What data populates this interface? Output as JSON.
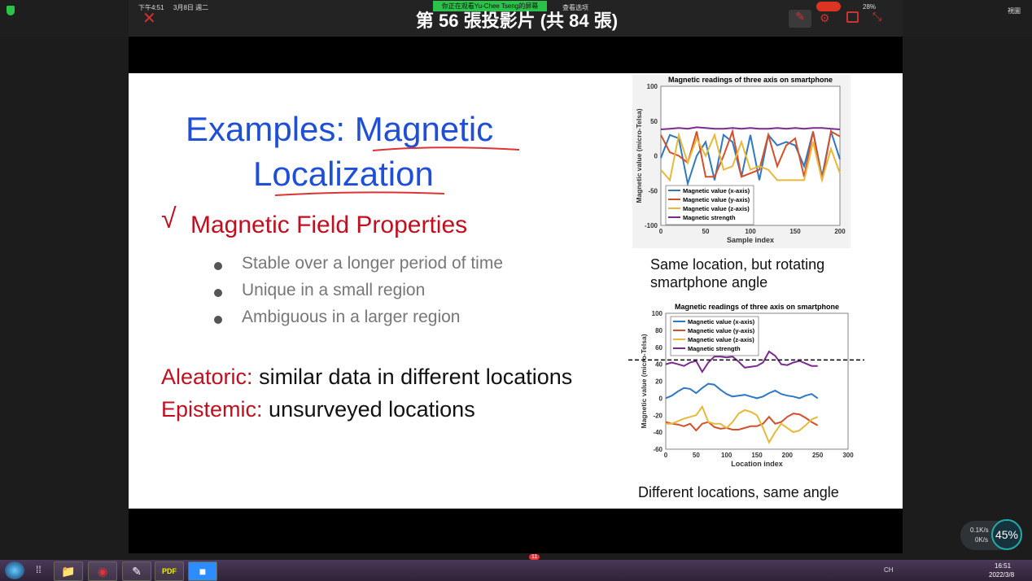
{
  "status": {
    "time": "下午4:51",
    "date": "3月8日 週二",
    "battery": "28%",
    "view": "視圖"
  },
  "meeting": {
    "share_notice": "你正在观看Yu-Chee Tseng的屏幕",
    "view_options": "查看选项",
    "slide_title": "第 56 張投影片 (共 84 張)"
  },
  "slide": {
    "title_line1a": "Examples: ",
    "title_line1b": "Magnetic",
    "title_line2": "Localization",
    "check": "√",
    "heading": "Magnetic Field Properties",
    "bullets": [
      "Stable over a longer period of time",
      "Unique in a small region",
      "Ambiguous in a larger region"
    ],
    "aleatoric_label": "Aleatoric:",
    "aleatoric_text": " similar data in different locations",
    "epistemic_label": "Epistemic:",
    "epistemic_text": " unsurveyed locations",
    "caption1": "Same location, but rotating smartphone angle",
    "caption2": "Different locations, same angle"
  },
  "chart_data": [
    {
      "type": "line",
      "title": "Magnetic readings of three axis on smartphone",
      "xlabel": "Sample index",
      "ylabel": "Magnetic value (micro-Telsa)",
      "xlim": [
        0,
        200
      ],
      "ylim": [
        -100,
        100
      ],
      "xticks": [
        0,
        50,
        100,
        150,
        200
      ],
      "yticks": [
        -100,
        -50,
        0,
        50,
        100
      ],
      "legend": "bottom-left",
      "x": [
        0,
        10,
        20,
        30,
        40,
        50,
        60,
        70,
        80,
        90,
        100,
        110,
        120,
        130,
        140,
        150,
        160,
        170,
        180,
        190,
        200
      ],
      "series": [
        {
          "name": "Magnetic value (x-axis)",
          "color": "#2f78c4",
          "values": [
            -3,
            30,
            25,
            -40,
            0,
            20,
            -35,
            30,
            20,
            -30,
            30,
            -35,
            30,
            15,
            20,
            15,
            -15,
            35,
            -30,
            35,
            -5
          ]
        },
        {
          "name": "Magnetic value (y-axis)",
          "color": "#d4502a",
          "values": [
            30,
            5,
            0,
            -10,
            35,
            -30,
            -30,
            0,
            35,
            -30,
            -25,
            -20,
            30,
            -15,
            15,
            25,
            -30,
            35,
            -35,
            35,
            28
          ]
        },
        {
          "name": "Magnetic value (z-axis)",
          "color": "#e8b83a",
          "values": [
            -20,
            -35,
            30,
            -10,
            25,
            0,
            30,
            -20,
            -15,
            20,
            -20,
            -15,
            -20,
            -35,
            -35,
            -35,
            -35,
            20,
            -35,
            10,
            -25
          ]
        },
        {
          "name": "Magnetic strength",
          "color": "#7b2a8f",
          "values": [
            38,
            39,
            40,
            39,
            41,
            40,
            39,
            39,
            40,
            39,
            40,
            39,
            39,
            40,
            39,
            40,
            39,
            40,
            40,
            39,
            38
          ]
        }
      ]
    },
    {
      "type": "line",
      "title": "Magnetic readings of three axis on smartphone",
      "xlabel": "Location index",
      "ylabel": "Magnetic value (micro-Telsa)",
      "xlim": [
        0,
        300
      ],
      "ylim": [
        -60,
        100
      ],
      "xticks": [
        0,
        50,
        100,
        150,
        200,
        250,
        300
      ],
      "yticks": [
        -60,
        -40,
        -20,
        0,
        20,
        40,
        60,
        80,
        100
      ],
      "legend": "top-left",
      "reference_line": 45,
      "x": [
        0,
        10,
        20,
        30,
        40,
        50,
        60,
        70,
        80,
        90,
        100,
        110,
        120,
        130,
        140,
        150,
        160,
        170,
        180,
        190,
        200,
        210,
        220,
        230,
        240,
        250
      ],
      "series": [
        {
          "name": "Magnetic value (x-axis)",
          "color": "#2f78c4",
          "values": [
            0,
            3,
            8,
            12,
            11,
            6,
            12,
            17,
            16,
            10,
            5,
            2,
            3,
            4,
            2,
            0,
            2,
            6,
            9,
            5,
            3,
            2,
            0,
            3,
            5,
            0
          ]
        },
        {
          "name": "Magnetic value (y-axis)",
          "color": "#d4502a",
          "values": [
            -28,
            -30,
            -31,
            -33,
            -30,
            -38,
            -30,
            -28,
            -34,
            -36,
            -35,
            -37,
            -37,
            -35,
            -33,
            -33,
            -30,
            -22,
            -30,
            -28,
            -22,
            -18,
            -19,
            -23,
            -28,
            -32
          ]
        },
        {
          "name": "Magnetic value (z-axis)",
          "color": "#e8b83a",
          "values": [
            -30,
            -30,
            -27,
            -24,
            -22,
            -20,
            -10,
            -28,
            -30,
            -30,
            -35,
            -28,
            -18,
            -14,
            -16,
            -20,
            -35,
            -52,
            -40,
            -30,
            -35,
            -40,
            -38,
            -32,
            -25,
            -22
          ]
        },
        {
          "name": "Magnetic strength",
          "color": "#7b2a8f",
          "values": [
            40,
            42,
            40,
            38,
            42,
            44,
            31,
            42,
            49,
            49,
            48,
            49,
            43,
            36,
            37,
            38,
            42,
            55,
            50,
            40,
            39,
            42,
            44,
            41,
            38,
            38
          ]
        }
      ]
    }
  ],
  "widget": {
    "up": "0.1K/s",
    "down": "0K/s",
    "cpu": "45%"
  },
  "taskbar": {
    "badge": "11",
    "clock_time": "16:51",
    "clock_date": "2022/3/8",
    "ime": "CH"
  }
}
